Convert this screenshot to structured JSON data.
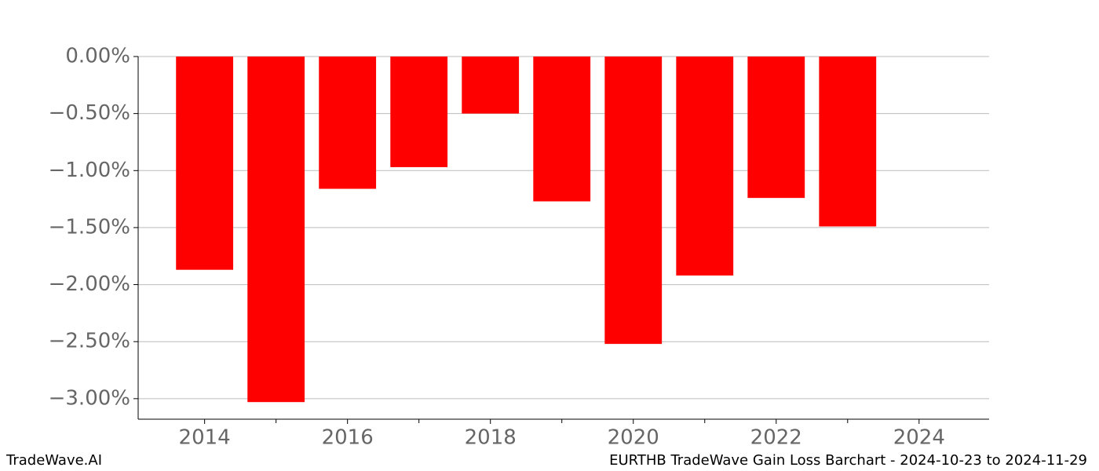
{
  "chart_data": {
    "type": "bar",
    "x": [
      2014,
      2015,
      2016,
      2017,
      2018,
      2019,
      2020,
      2021,
      2022,
      2023
    ],
    "values": [
      -1.87,
      -3.03,
      -1.16,
      -0.97,
      -0.5,
      -1.27,
      -2.52,
      -1.92,
      -1.24,
      -1.49
    ],
    "color": "#ff0000",
    "bar_width": 0.8,
    "xlim": [
      2013.07,
      2024.98
    ],
    "xticks": [
      2014,
      2016,
      2018,
      2020,
      2022,
      2024
    ],
    "xminor": [
      2015,
      2017,
      2019,
      2021,
      2023
    ],
    "ylim": [
      -3.18,
      0
    ],
    "yticks": [
      {
        "value": 0,
        "label": "0.00%"
      },
      {
        "value": -0.5,
        "label": "−0.50%"
      },
      {
        "value": -1,
        "label": "−1.00%"
      },
      {
        "value": -1.5,
        "label": "−1.50%"
      },
      {
        "value": -2,
        "label": "−2.00%"
      },
      {
        "value": -2.5,
        "label": "−2.50%"
      },
      {
        "value": -3,
        "label": "−3.00%"
      }
    ],
    "grid": true,
    "footer_left": "TradeWave.AI",
    "footer_right": "EURTHB TradeWave Gain Loss Barchart - 2024-10-23 to 2024-11-29"
  }
}
